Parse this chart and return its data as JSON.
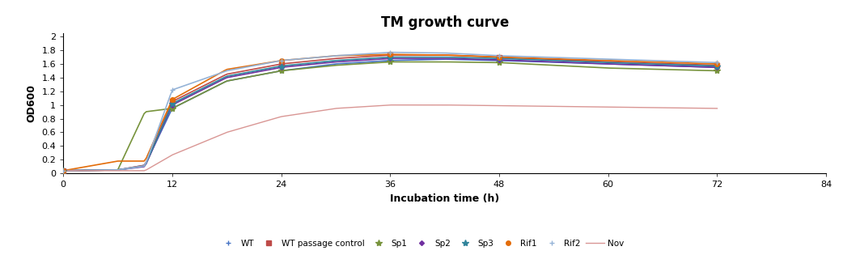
{
  "title": "TM growth curve",
  "xlabel": "Incubation time (h)",
  "ylabel": "OD600",
  "xlim": [
    0,
    84
  ],
  "ylim": [
    0,
    2.05
  ],
  "xticks": [
    0,
    12,
    24,
    36,
    48,
    60,
    72,
    84
  ],
  "ytick_vals": [
    0,
    0.2,
    0.4,
    0.6,
    0.8,
    1.0,
    1.2,
    1.4,
    1.6,
    1.8,
    2.0
  ],
  "ytick_labels": [
    "0",
    "0.2",
    "0.4",
    "0.6",
    "0.8",
    "1",
    "1.2",
    "1.4",
    "1.6",
    "1.8",
    "2"
  ],
  "time_points": [
    0,
    6,
    9,
    12,
    18,
    24,
    30,
    36,
    42,
    48,
    60,
    72
  ],
  "series": [
    {
      "label": "WT",
      "color": "#4472C4",
      "marker": "+",
      "markersize": 5,
      "linewidth": 1.2,
      "values": [
        0.04,
        0.05,
        0.12,
        0.95,
        1.35,
        1.5,
        1.6,
        1.65,
        1.67,
        1.65,
        1.6,
        1.55
      ]
    },
    {
      "label": "WT passage control",
      "color": "#BE4B48",
      "marker": "s",
      "markersize": 4,
      "linewidth": 1.2,
      "values": [
        0.04,
        0.05,
        0.12,
        1.05,
        1.45,
        1.6,
        1.68,
        1.73,
        1.73,
        1.7,
        1.63,
        1.58
      ]
    },
    {
      "label": "Sp1",
      "color": "#77933C",
      "marker": "*",
      "markersize": 6,
      "linewidth": 1.2,
      "values": [
        0.04,
        0.05,
        0.9,
        0.95,
        1.35,
        1.5,
        1.58,
        1.63,
        1.63,
        1.62,
        1.54,
        1.5
      ]
    },
    {
      "label": "Sp2",
      "color": "#7030A0",
      "marker": "D",
      "markersize": 3,
      "linewidth": 1.2,
      "values": [
        0.04,
        0.05,
        0.1,
        1.0,
        1.4,
        1.55,
        1.63,
        1.68,
        1.68,
        1.66,
        1.6,
        1.55
      ]
    },
    {
      "label": "Sp3",
      "color": "#31849B",
      "marker": "*",
      "markersize": 6,
      "linewidth": 1.2,
      "values": [
        0.04,
        0.05,
        0.11,
        1.02,
        1.42,
        1.57,
        1.65,
        1.7,
        1.7,
        1.68,
        1.62,
        1.57
      ]
    },
    {
      "label": "Rif1",
      "color": "#E36C09",
      "marker": "o",
      "markersize": 4,
      "linewidth": 1.2,
      "values": [
        0.04,
        0.18,
        0.18,
        1.08,
        1.52,
        1.65,
        1.72,
        1.74,
        1.73,
        1.7,
        1.65,
        1.6
      ]
    },
    {
      "label": "Rif2",
      "color": "#95B3D7",
      "marker": "+",
      "markersize": 5,
      "linewidth": 1.2,
      "values": [
        0.04,
        0.05,
        0.11,
        1.22,
        1.5,
        1.65,
        1.72,
        1.77,
        1.76,
        1.72,
        1.67,
        1.62
      ]
    },
    {
      "label": "Nov",
      "color": "#D99694",
      "marker": null,
      "markersize": 0,
      "linewidth": 1.0,
      "values": [
        0.04,
        0.04,
        0.04,
        0.27,
        0.6,
        0.83,
        0.95,
        1.0,
        1.0,
        0.99,
        0.97,
        0.95
      ]
    }
  ],
  "figsize": [
    10.42,
    3.15
  ],
  "dpi": 100
}
